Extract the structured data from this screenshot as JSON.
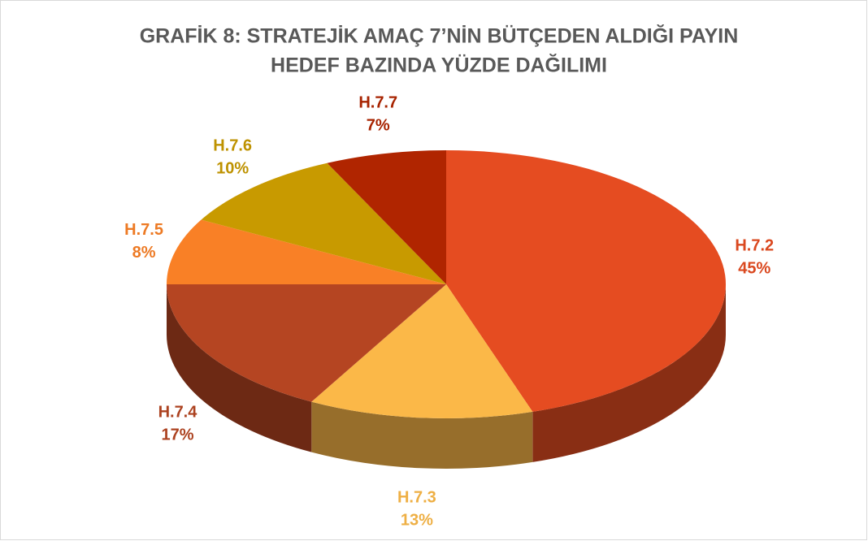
{
  "chart_data": {
    "type": "pie",
    "title": [
      "GRAFİK 8: STRATEJİK AMAÇ 7’NİN BÜTÇEDEN ALDIĞI PAYIN",
      "HEDEF BAZINDA YÜZDE DAĞILIMI"
    ],
    "categories": [
      "H.7.2",
      "H.7.3",
      "H.7.4",
      "H.7.5",
      "H.7.6",
      "H.7.7"
    ],
    "values": [
      45,
      13,
      17,
      8,
      10,
      7
    ],
    "value_labels": [
      "45%",
      "13%",
      "17%",
      "8%",
      "10%",
      "7%"
    ],
    "colors": [
      "#e54c21",
      "#fbb848",
      "#b54522",
      "#f98026",
      "#c89a00",
      "#b02500"
    ]
  }
}
